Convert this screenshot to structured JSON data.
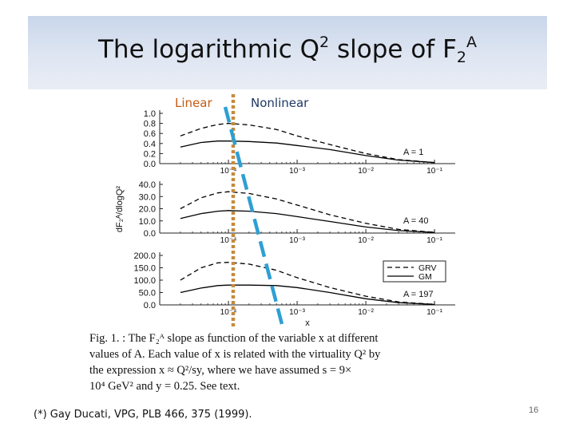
{
  "slide": {
    "title_main": "The logarithmic Q",
    "title_sup": "2",
    "title_mid": " slope of F",
    "title_sub": "2",
    "title_sup2": "A",
    "label_linear": "Linear",
    "label_nonlinear": "Nonlinear",
    "caption_lines": [
      "Fig. 1. : The F₂ᴬ slope as function of the variable x at different",
      "values of A. Each value of x is related with the virtuality Q² by",
      "the expression  x ≈ Q²/sy,  where we have assumed  s = 9×",
      "10⁴ GeV²  and  y = 0.25. See text."
    ],
    "reference": "(*) Gay Ducati, VPG, PLB 466, 375 (1999).",
    "page_number": "16"
  },
  "colors": {
    "linear_line": "#c58a3c",
    "nonlinear_line": "#2e9fd3",
    "curve": "#000000",
    "label_linear": "#c55a11",
    "label_nonlinear": "#1f3864"
  },
  "chart_data": [
    {
      "type": "line",
      "panel": "A = 1",
      "annotation": "A = 1",
      "ylabel": "dF₂ᴬ/dlogQ²",
      "xscale": "log",
      "x_range": [
        1e-05,
        0.2
      ],
      "ylim": [
        0,
        1.0
      ],
      "yticks": [
        0.0,
        0.2,
        0.4,
        0.6,
        0.8,
        1.0
      ],
      "ytick_labels": [
        "0.0",
        "0.2",
        "0.4",
        "0.6",
        "0.8",
        "1.0"
      ],
      "xticks": [
        0.0001,
        0.001,
        0.01,
        0.1
      ],
      "xtick_labels": [
        "10⁻⁴",
        "10⁻³",
        "10⁻²",
        "10⁻¹"
      ],
      "x": [
        2e-05,
        4e-05,
        7e-05,
        0.0001,
        0.0002,
        0.0005,
        0.001,
        0.003,
        0.01,
        0.03,
        0.1
      ],
      "series": [
        {
          "name": "GRV",
          "style": "dashed",
          "values": [
            0.55,
            0.7,
            0.78,
            0.8,
            0.77,
            0.68,
            0.55,
            0.38,
            0.2,
            0.08,
            0.02
          ]
        },
        {
          "name": "GM",
          "style": "solid",
          "values": [
            0.33,
            0.42,
            0.45,
            0.45,
            0.44,
            0.41,
            0.36,
            0.28,
            0.16,
            0.07,
            0.02
          ]
        }
      ]
    },
    {
      "type": "line",
      "panel": "A = 40",
      "annotation": "A = 40",
      "xscale": "log",
      "x_range": [
        1e-05,
        0.2
      ],
      "ylim": [
        0,
        40
      ],
      "yticks": [
        0,
        10,
        20,
        30,
        40
      ],
      "ytick_labels": [
        "0.0",
        "10.0",
        "20.0",
        "30.0",
        "40.0"
      ],
      "xticks": [
        0.0001,
        0.001,
        0.01,
        0.1
      ],
      "xtick_labels": [
        "10⁻⁴",
        "10⁻³",
        "10⁻²",
        "10⁻¹"
      ],
      "x": [
        2e-05,
        4e-05,
        7e-05,
        0.0001,
        0.0002,
        0.0005,
        0.001,
        0.003,
        0.01,
        0.03,
        0.1
      ],
      "series": [
        {
          "name": "GRV",
          "style": "dashed",
          "values": [
            20,
            29,
            33,
            34,
            32.5,
            28,
            23,
            15,
            8,
            3,
            0.6
          ]
        },
        {
          "name": "GM",
          "style": "solid",
          "values": [
            12,
            16,
            18,
            18.5,
            18,
            16,
            13.5,
            9.5,
            5,
            2,
            0.5
          ]
        }
      ]
    },
    {
      "type": "line",
      "panel": "A = 197",
      "annotation": "A = 197",
      "xlabel": "x",
      "legend": "right",
      "xscale": "log",
      "x_range": [
        1e-05,
        0.2
      ],
      "ylim": [
        0,
        200
      ],
      "yticks": [
        0,
        50,
        100,
        150,
        200
      ],
      "ytick_labels": [
        "0.0",
        "50.0",
        "100.0",
        "150.0",
        "200.0"
      ],
      "xticks": [
        0.0001,
        0.001,
        0.01,
        0.1
      ],
      "xtick_labels": [
        "10⁻⁴",
        "10⁻³",
        "10⁻²",
        "10⁻¹"
      ],
      "x": [
        2e-05,
        4e-05,
        7e-05,
        0.0001,
        0.0002,
        0.0005,
        0.001,
        0.003,
        0.01,
        0.03,
        0.1
      ],
      "series": [
        {
          "name": "GRV",
          "style": "dashed",
          "values": [
            100,
            150,
            170,
            172,
            165,
            140,
            110,
            70,
            35,
            12,
            2
          ]
        },
        {
          "name": "GM",
          "style": "solid",
          "values": [
            50,
            68,
            78,
            80,
            80,
            78,
            70,
            50,
            25,
            9,
            2
          ]
        }
      ]
    }
  ]
}
